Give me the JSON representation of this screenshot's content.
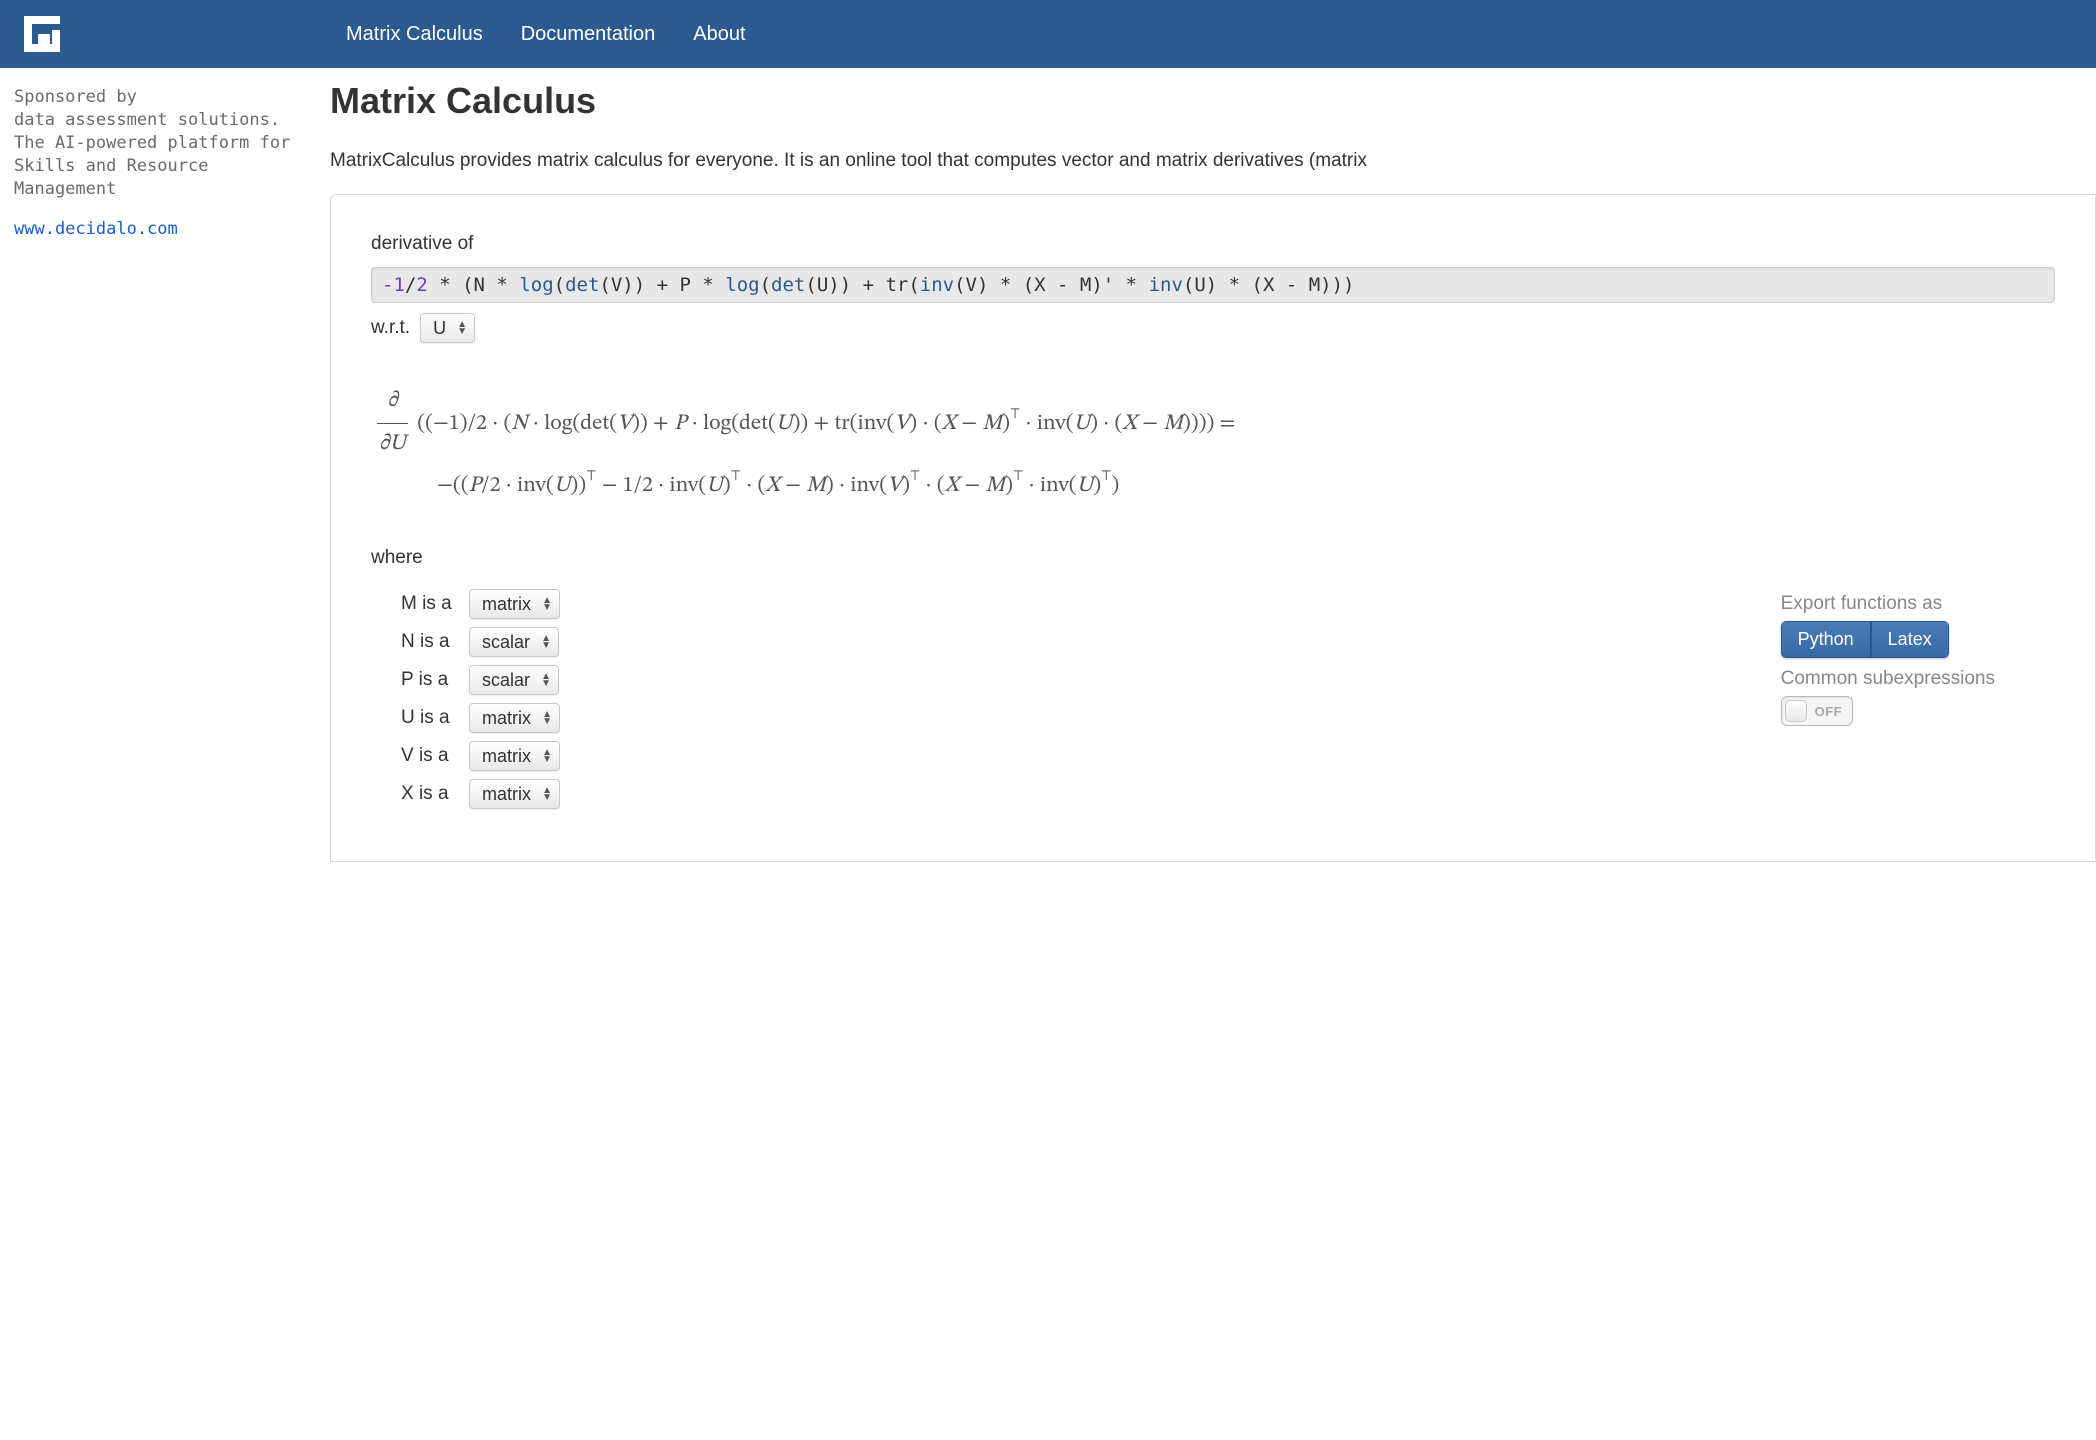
{
  "colors": {
    "header_bg": "#2a5a8f",
    "nav_text": "#ffffff",
    "title": "#333333",
    "body_text": "#333333",
    "muted": "#888888",
    "sponsor_text": "#6a6a6a",
    "link": "#1a5cc8",
    "expr_bg": "#e8e8e8",
    "btn_bg_top": "#4a7db8",
    "btn_bg_bottom": "#3769a6",
    "keyword": "#2a5a8f",
    "number": "#6a3fb8"
  },
  "nav": {
    "items": [
      "Matrix Calculus",
      "Documentation",
      "About"
    ]
  },
  "sponsor": {
    "line1": "Sponsored by",
    "line2": "data assessment solutions.",
    "line3": "The AI-powered platform for",
    "line4": "Skills and Resource Management",
    "link": "www.decidalo.com"
  },
  "page": {
    "title": "Matrix Calculus",
    "intro": "MatrixCalculus provides matrix calculus for everyone. It is an online tool that computes vector and matrix derivatives (matrix"
  },
  "calc": {
    "derivative_label": "derivative of",
    "expression_tokens": [
      {
        "t": "num",
        "v": "-1"
      },
      {
        "t": "",
        "v": "/"
      },
      {
        "t": "num",
        "v": "2"
      },
      {
        "t": "",
        "v": " * (N * "
      },
      {
        "t": "kw",
        "v": "log"
      },
      {
        "t": "",
        "v": "("
      },
      {
        "t": "kw",
        "v": "det"
      },
      {
        "t": "",
        "v": "(V)) + P * "
      },
      {
        "t": "kw",
        "v": "log"
      },
      {
        "t": "",
        "v": "("
      },
      {
        "t": "kw",
        "v": "det"
      },
      {
        "t": "",
        "v": "(U)) + tr("
      },
      {
        "t": "kw",
        "v": "inv"
      },
      {
        "t": "",
        "v": "(V) * (X - M)' * "
      },
      {
        "t": "kw",
        "v": "inv"
      },
      {
        "t": "",
        "v": "(U) * (X - M)))"
      }
    ],
    "wrt_label": "w.r.t.",
    "wrt_value": "U",
    "result_line1": "((−1)/2 · (N · log(det(V)) + P · log(det(U)) + tr(inv(V) · (X − M)⊤ · inv(U) · (X − M)))) =",
    "result_line2": "−((P/2 · inv(U))⊤ − 1/2 · inv(U)⊤ · (X − M) · inv(V)⊤ · (X − M)⊤ · inv(U)⊤)",
    "partial_symbol": "∂",
    "partial_var": "∂U",
    "where_label": "where",
    "variables": [
      {
        "name": "M",
        "type": "matrix"
      },
      {
        "name": "N",
        "type": "scalar"
      },
      {
        "name": "P",
        "type": "scalar"
      },
      {
        "name": "U",
        "type": "matrix"
      },
      {
        "name": "V",
        "type": "matrix"
      },
      {
        "name": "X",
        "type": "matrix"
      }
    ],
    "is_a": " is a",
    "export_label": "Export functions as",
    "export_buttons": [
      "Python",
      "Latex"
    ],
    "cse_label": "Common subexpressions",
    "cse_state": "OFF"
  }
}
